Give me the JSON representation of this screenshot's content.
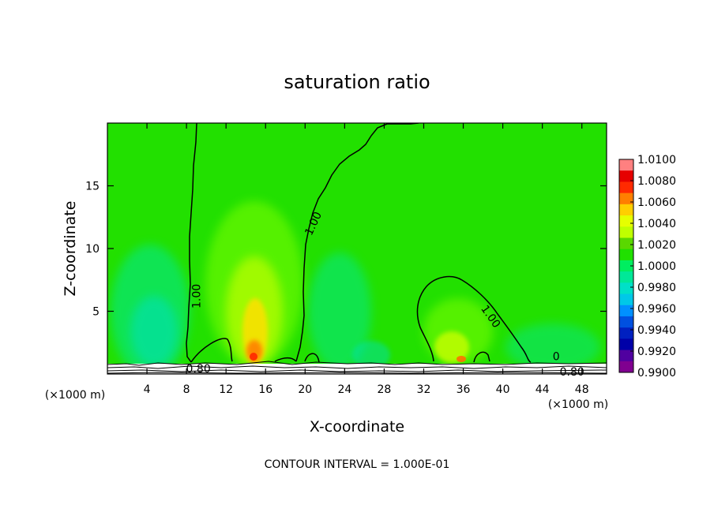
{
  "chart_data": {
    "type": "heatmap",
    "title": "saturation ratio",
    "xlabel": "X-coordinate",
    "ylabel": "Z-coordinate",
    "x_unit_left": "(×1000 m)",
    "x_unit_right": "(×1000 m)",
    "xlim": [
      0,
      50.5
    ],
    "ylim": [
      0,
      20
    ],
    "x_ticks": [
      4,
      8,
      12,
      16,
      20,
      24,
      28,
      32,
      36,
      40,
      44,
      48
    ],
    "y_ticks": [
      5,
      10,
      15
    ],
    "footer": "CONTOUR INTERVAL = 1.000E-01",
    "contour_labels": [
      {
        "text": "1.00",
        "x": 9.0,
        "z": 6.2,
        "angle": -90
      },
      {
        "text": "1.00",
        "x": 20.8,
        "z": 12.0,
        "angle": -65
      },
      {
        "text": "1.00",
        "x": 38.8,
        "z": 4.6,
        "angle": 55
      },
      {
        "text": "0.80",
        "x": 9.2,
        "z": 0.45,
        "angle": 0
      },
      {
        "text": "0.80",
        "x": 47.0,
        "z": 0.2,
        "angle": 0
      },
      {
        "text": "0",
        "x": 45.4,
        "z": 1.4,
        "angle": 0
      }
    ],
    "colorbar": {
      "labels": [
        "1.0100",
        "1.0080",
        "1.0060",
        "1.0040",
        "1.0020",
        "1.0000",
        "0.9980",
        "0.9960",
        "0.9940",
        "0.9920",
        "0.9900"
      ],
      "colors": [
        "#ff8080",
        "#e60000",
        "#ff2a00",
        "#ff7f00",
        "#ffcf00",
        "#e6ff00",
        "#bfff00",
        "#5ad800",
        "#20e000",
        "#00ee60",
        "#00e898",
        "#00e0c8",
        "#00c8e8",
        "#0090ff",
        "#0050e0",
        "#0020c0",
        "#0000a8",
        "#5000a0",
        "#800090"
      ]
    },
    "background_value": 1.0,
    "features": [
      {
        "name": "plume",
        "x": 15.0,
        "z_top": 12.0,
        "peak": 1.007
      },
      {
        "name": "plume",
        "x": 34.5,
        "z_top": 6.0,
        "peak": 1.006
      },
      {
        "name": "moist region",
        "x": 4.5,
        "z_top": 8.0,
        "peak": 0.998
      },
      {
        "name": "moist region",
        "x": 24.0,
        "z_top": 8.0,
        "peak": 0.998
      }
    ]
  }
}
